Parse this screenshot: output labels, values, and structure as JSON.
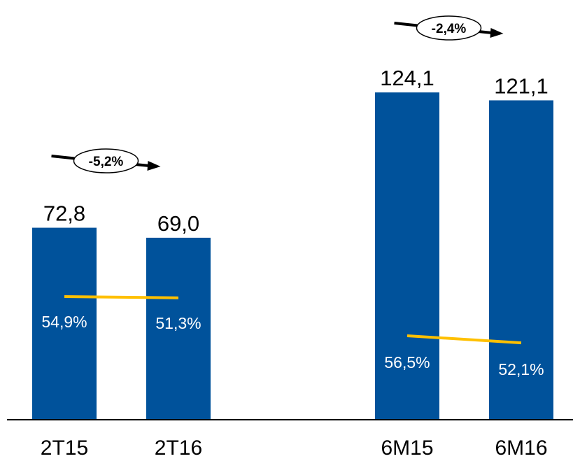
{
  "chart_data": {
    "type": "bar",
    "categories": [
      "2T15",
      "2T16",
      "6M15",
      "6M16"
    ],
    "values": [
      72.8,
      69.0,
      124.1,
      121.1
    ],
    "value_labels": [
      "72,8",
      "69,0",
      "124,1",
      "121,1"
    ],
    "ratio_values": [
      54.9,
      51.3,
      56.5,
      52.1
    ],
    "ratio_labels": [
      "54,9%",
      "51,3%",
      "56,5%",
      "52,1%"
    ],
    "groups": [
      {
        "categories": [
          "2T15",
          "2T16"
        ],
        "change_label": "-5,2%"
      },
      {
        "categories": [
          "6M15",
          "6M16"
        ],
        "change_label": "-2,4%"
      }
    ],
    "title": "",
    "xlabel": "",
    "ylabel": "",
    "grid": false,
    "legend": "none",
    "colors": {
      "bar": "#00529B",
      "ratio_line": "#FFC000",
      "axis": "#000000",
      "ratio_text": "#FFFFFF"
    }
  }
}
